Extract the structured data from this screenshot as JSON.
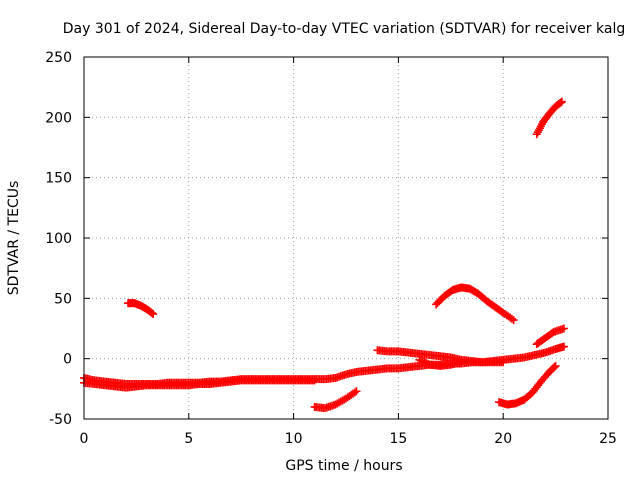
{
  "chart_data": {
    "type": "scatter",
    "title": "Day 301 of 2024, Sidereal Day-to-day VTEC variation (SDTVAR) for receiver kalg",
    "xlabel": "GPS time / hours",
    "ylabel": "SDTVAR / TECUs",
    "xlim": [
      0,
      25
    ],
    "ylim": [
      -50,
      250
    ],
    "xticks": [
      0,
      5,
      10,
      15,
      20,
      25
    ],
    "yticks": [
      -50,
      0,
      50,
      100,
      150,
      200,
      250
    ],
    "grid": true,
    "marker": "plus",
    "color": "#ff0000",
    "series": [
      {
        "name": "band-main",
        "x": [
          0.0,
          0.5,
          1.0,
          1.5,
          2.0,
          2.5,
          3.0,
          3.5,
          4.0,
          4.5,
          5.0,
          5.5,
          6.0,
          6.5,
          7.0,
          7.5,
          8.0,
          8.5,
          9.0,
          9.5,
          10.0,
          10.5,
          11.0,
          11.5,
          12.0,
          12.5,
          13.0,
          13.5,
          14.0,
          14.5,
          15.0,
          15.5,
          16.0,
          16.5,
          17.0,
          17.5,
          18.0,
          18.5,
          19.0,
          19.5,
          20.0,
          20.5,
          21.0,
          21.5,
          22.0,
          22.5,
          22.9
        ],
        "y": [
          -16,
          -18,
          -19,
          -20,
          -21,
          -21,
          -21,
          -21,
          -20,
          -20,
          -20,
          -20,
          -19,
          -19,
          -18,
          -17,
          -17,
          -17,
          -17,
          -17,
          -17,
          -17,
          -17,
          -17,
          -16,
          -13,
          -11,
          -10,
          -9,
          -8,
          -8,
          -7,
          -6,
          -5,
          -5,
          -4,
          -4,
          -3,
          -3,
          -2,
          -1,
          0,
          1,
          3,
          5,
          8,
          10
        ]
      },
      {
        "name": "band-lower",
        "x": [
          0.0,
          0.5,
          1.0,
          1.5,
          2.0,
          2.5,
          3.0,
          3.5,
          4.0,
          4.5,
          5.0,
          5.5,
          6.0,
          6.5,
          7.0,
          7.5,
          8.0,
          8.5,
          9.0,
          9.5,
          10.0,
          10.5,
          11.0
        ],
        "y": [
          -20,
          -21,
          -22,
          -23,
          -24,
          -23,
          -22,
          -22,
          -22,
          -22,
          -22,
          -21,
          -21,
          -20,
          -19,
          -18,
          -18,
          -18,
          -18,
          -18,
          -18,
          -18,
          -18
        ]
      },
      {
        "name": "arc-early",
        "x": [
          2.1,
          2.4,
          2.7,
          3.0,
          3.3
        ],
        "y": [
          46,
          46,
          44,
          41,
          37
        ]
      },
      {
        "name": "arc-noon-low",
        "x": [
          11.0,
          11.5,
          12.0,
          12.5,
          13.0
        ],
        "y": [
          -40,
          -41,
          -38,
          -33,
          -27
        ]
      },
      {
        "name": "arc-afternoon-top",
        "x": [
          14.0,
          14.5,
          15.0,
          15.5,
          16.0,
          16.5,
          17.0,
          17.5,
          18.0,
          18.5,
          19.0,
          19.5,
          20.0
        ],
        "y": [
          7,
          6,
          6,
          5,
          4,
          3,
          2,
          1,
          -1,
          -2,
          -3,
          -3,
          -3
        ]
      },
      {
        "name": "arc-afternoon-dip",
        "x": [
          16.0,
          16.5,
          17.0,
          17.5,
          18.0
        ],
        "y": [
          -1,
          -5,
          -6,
          -5,
          -3
        ]
      },
      {
        "name": "arc-hump",
        "x": [
          16.8,
          17.2,
          17.6,
          18.0,
          18.4,
          18.8,
          19.2,
          19.6,
          20.0,
          20.5
        ],
        "y": [
          45,
          52,
          57,
          59,
          58,
          54,
          48,
          43,
          38,
          32
        ]
      },
      {
        "name": "arc-evening-low",
        "x": [
          19.8,
          20.2,
          20.6,
          21.0,
          21.4,
          21.8,
          22.2,
          22.5
        ],
        "y": [
          -36,
          -38,
          -37,
          -34,
          -28,
          -19,
          -11,
          -6
        ]
      },
      {
        "name": "arc-evening-mid",
        "x": [
          21.6,
          22.0,
          22.4,
          22.9
        ],
        "y": [
          12,
          17,
          22,
          25
        ]
      },
      {
        "name": "arc-evening-high",
        "x": [
          21.6,
          21.9,
          22.2,
          22.5,
          22.8
        ],
        "y": [
          186,
          196,
          203,
          209,
          213
        ]
      }
    ]
  }
}
